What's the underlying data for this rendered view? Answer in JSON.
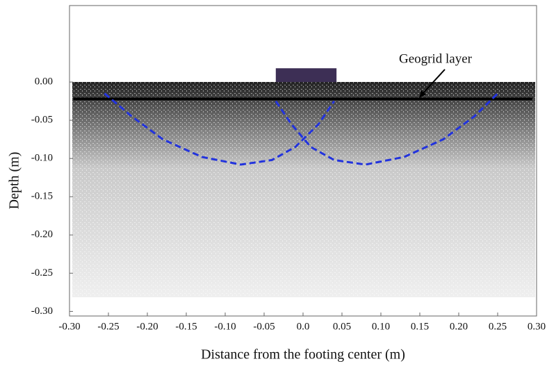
{
  "chart_data": {
    "type": "line",
    "xlabel": "Distance from the footing center (m)",
    "ylabel": "Depth (m)",
    "annotation": "Geogrid layer",
    "xlim": [
      -0.3,
      0.3
    ],
    "ylim": [
      -0.306,
      0.1
    ],
    "xticks": [
      {
        "value": -0.3,
        "label": "-0.30"
      },
      -0.25,
      {
        "value": -0.2,
        "label": "-0.20"
      },
      -0.15,
      {
        "value": -0.1,
        "label": "-0.10"
      },
      -0.05,
      {
        "value": 0,
        "label": "0.0"
      },
      0.05,
      {
        "value": 0.1,
        "label": "0.10"
      },
      0.15,
      {
        "value": 0.2,
        "label": "0.20"
      },
      0.25,
      {
        "value": 0.3,
        "label": "0.30"
      }
    ],
    "yticks": [
      {
        "value": 0,
        "label": "0.00"
      },
      -0.05,
      {
        "value": -0.1,
        "label": "-0.10"
      },
      -0.15,
      {
        "value": -0.2,
        "label": "-0.20"
      },
      -0.25,
      {
        "value": -0.3,
        "label": "-0.30"
      }
    ],
    "series": [
      {
        "color": "#000000",
        "style": "solid",
        "x": [
          -0.295,
          0.295
        ],
        "values": [
          -0.022,
          -0.022
        ]
      },
      {
        "color": "#2233dd",
        "style": "dashed",
        "x": [
          -0.255,
          -0.22,
          -0.18,
          -0.13,
          -0.08,
          -0.04,
          -0.01,
          0.02,
          0.04
        ],
        "values": [
          -0.015,
          -0.045,
          -0.075,
          -0.098,
          -0.108,
          -0.102,
          -0.085,
          -0.055,
          -0.025
        ]
      },
      {
        "color": "#2233dd",
        "style": "dashed",
        "x": [
          -0.035,
          -0.015,
          0.01,
          0.04,
          0.08,
          0.13,
          0.18,
          0.22,
          0.25
        ],
        "values": [
          -0.025,
          -0.055,
          -0.085,
          -0.102,
          -0.108,
          -0.098,
          -0.075,
          -0.045,
          -0.015
        ]
      }
    ],
    "footing": {
      "color": "#3d2f55",
      "x": [
        -0.035,
        0.043
      ],
      "y": [
        0,
        0.018
      ]
    }
  }
}
